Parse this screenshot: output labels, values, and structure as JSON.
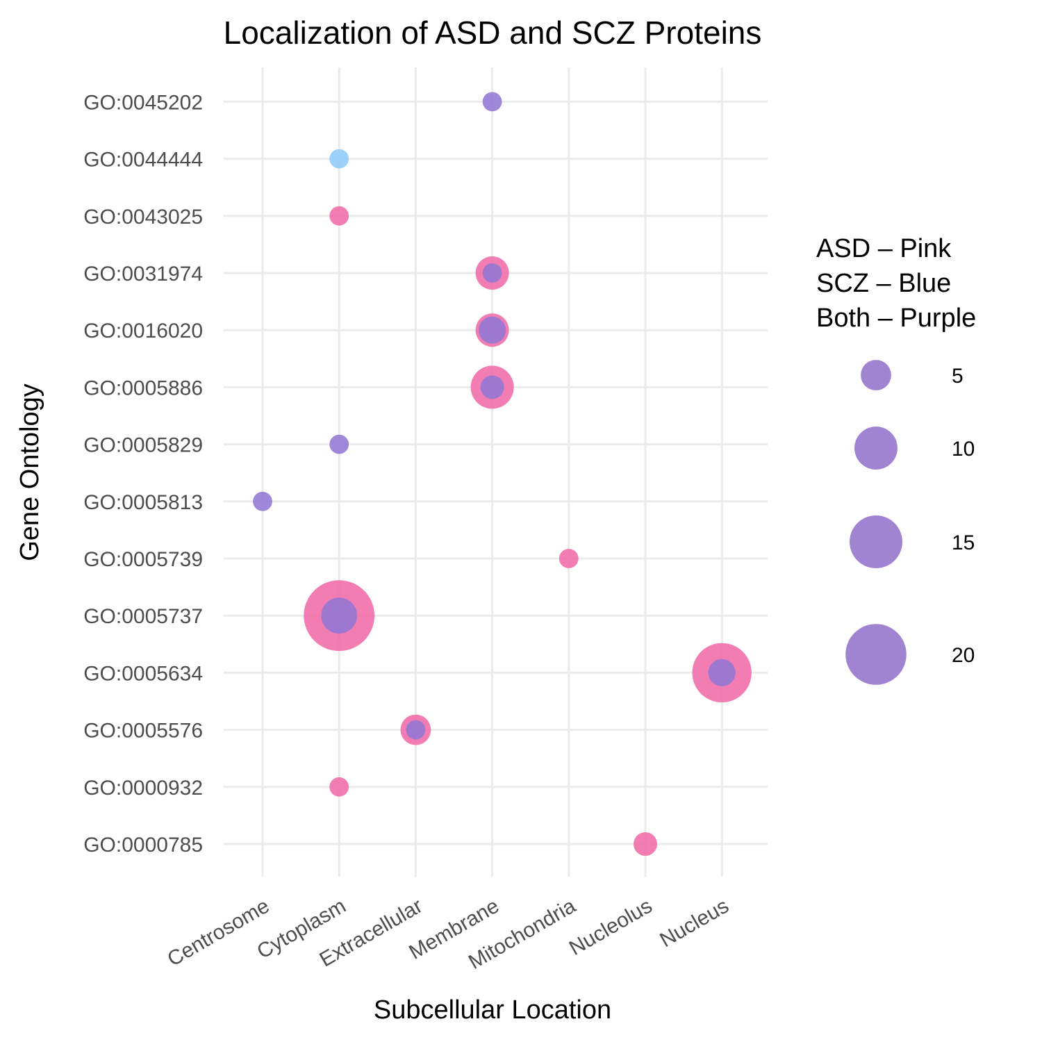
{
  "chart_data": {
    "type": "scatter",
    "title": "Localization of ASD and SCZ Proteins",
    "xlabel": "Subcellular Location",
    "ylabel": "Gene Ontology",
    "x_categories": [
      "Centrosome",
      "Cytoplasm",
      "Extracellular",
      "Membrane",
      "Mitochondria",
      "Nucleolus",
      "Nucleus"
    ],
    "y_categories": [
      "GO:0000785",
      "GO:0000932",
      "GO:0005576",
      "GO:0005634",
      "GO:0005737",
      "GO:0005739",
      "GO:0005813",
      "GO:0005829",
      "GO:0005886",
      "GO:0016020",
      "GO:0031974",
      "GO:0043025",
      "GO:0044444",
      "GO:0045202"
    ],
    "grid": true,
    "legend": {
      "position": "right",
      "title_lines": [
        "ASD – Pink",
        "SCZ – Blue",
        "Both – Purple"
      ],
      "size_breaks": [
        5,
        10,
        15,
        20
      ],
      "size_labels": [
        "5",
        "10",
        "15",
        "20"
      ]
    },
    "colors": {
      "ASD": "#f06ba8",
      "SCZ": "#8ecbfb",
      "Both": "#9278d4",
      "legend_fill": "#9b7dd0"
    },
    "series": [
      {
        "name": "ASD",
        "points": [
          {
            "x": "Nucleolus",
            "y": "GO:0000785",
            "size": 3
          },
          {
            "x": "Cytoplasm",
            "y": "GO:0000932",
            "size": 2
          },
          {
            "x": "Extracellular",
            "y": "GO:0005576",
            "size": 5
          },
          {
            "x": "Nucleus",
            "y": "GO:0005634",
            "size": 19
          },
          {
            "x": "Cytoplasm",
            "y": "GO:0005737",
            "size": 27
          },
          {
            "x": "Mitochondria",
            "y": "GO:0005739",
            "size": 2
          },
          {
            "x": "Membrane",
            "y": "GO:0005886",
            "size": 10
          },
          {
            "x": "Membrane",
            "y": "GO:0016020",
            "size": 6
          },
          {
            "x": "Membrane",
            "y": "GO:0031974",
            "size": 6
          },
          {
            "x": "Cytoplasm",
            "y": "GO:0043025",
            "size": 2
          }
        ]
      },
      {
        "name": "SCZ",
        "points": [
          {
            "x": "Cytoplasm",
            "y": "GO:0044444",
            "size": 2
          }
        ]
      },
      {
        "name": "Both",
        "points": [
          {
            "x": "Extracellular",
            "y": "GO:0005576",
            "size": 2
          },
          {
            "x": "Nucleus",
            "y": "GO:0005634",
            "size": 4
          },
          {
            "x": "Cytoplasm",
            "y": "GO:0005737",
            "size": 7
          },
          {
            "x": "Centrosome",
            "y": "GO:0005813",
            "size": 2
          },
          {
            "x": "Cytoplasm",
            "y": "GO:0005829",
            "size": 2
          },
          {
            "x": "Membrane",
            "y": "GO:0005886",
            "size": 3
          },
          {
            "x": "Membrane",
            "y": "GO:0016020",
            "size": 4
          },
          {
            "x": "Membrane",
            "y": "GO:0031974",
            "size": 2
          },
          {
            "x": "Membrane",
            "y": "GO:0045202",
            "size": 2
          }
        ]
      }
    ]
  }
}
